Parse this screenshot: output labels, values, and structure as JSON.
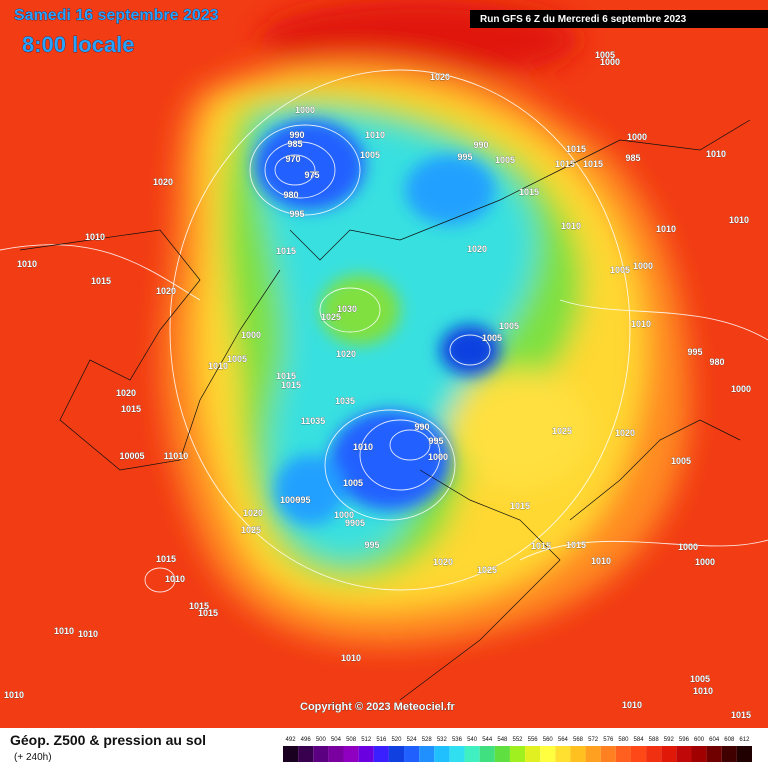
{
  "header": {
    "date": "Samedi 16 septembre 2023",
    "time": "8:00 locale",
    "run": "Run GFS 6 Z du Mercredi 6 septembre 2023"
  },
  "copyright": "Copyright © 2023 Meteociel.fr",
  "legend": {
    "title": "Géop. Z500 & pression au sol",
    "subtitle": "(+ 240h)",
    "scale": [
      {
        "label": "492",
        "color": "#1a0020"
      },
      {
        "label": "496",
        "color": "#3a0050"
      },
      {
        "label": "500",
        "color": "#5a0080"
      },
      {
        "label": "504",
        "color": "#7a00a0"
      },
      {
        "label": "508",
        "color": "#9000c0"
      },
      {
        "label": "512",
        "color": "#6a00e0"
      },
      {
        "label": "516",
        "color": "#3a20ff"
      },
      {
        "label": "520",
        "color": "#1040e0"
      },
      {
        "label": "524",
        "color": "#2060ff"
      },
      {
        "label": "528",
        "color": "#2090ff"
      },
      {
        "label": "532",
        "color": "#20c0ff"
      },
      {
        "label": "536",
        "color": "#30e0f0"
      },
      {
        "label": "540",
        "color": "#40f0c0"
      },
      {
        "label": "544",
        "color": "#40e080"
      },
      {
        "label": "548",
        "color": "#60e040"
      },
      {
        "label": "552",
        "color": "#a0f020"
      },
      {
        "label": "556",
        "color": "#e0f020"
      },
      {
        "label": "560",
        "color": "#ffff40"
      },
      {
        "label": "564",
        "color": "#ffe030"
      },
      {
        "label": "568",
        "color": "#ffc020"
      },
      {
        "label": "572",
        "color": "#ffa020"
      },
      {
        "label": "576",
        "color": "#ff8020"
      },
      {
        "label": "580",
        "color": "#ff6020"
      },
      {
        "label": "584",
        "color": "#ff4818"
      },
      {
        "label": "588",
        "color": "#f03010"
      },
      {
        "label": "592",
        "color": "#e01808"
      },
      {
        "label": "596",
        "color": "#c00808"
      },
      {
        "label": "600",
        "color": "#a00000"
      },
      {
        "label": "604",
        "color": "#700000"
      },
      {
        "label": "608",
        "color": "#400000"
      },
      {
        "label": "612",
        "color": "#200000"
      }
    ]
  },
  "isobar_labels": [
    "1020",
    "1000",
    "990",
    "985",
    "970",
    "975",
    "980",
    "995",
    "1010",
    "1005",
    "990",
    "995",
    "1005",
    "1015",
    "1015",
    "1015",
    "1000",
    "985",
    "1010",
    "1015",
    "1020",
    "1010",
    "1010",
    "1015",
    "1020",
    "1015",
    "1020",
    "1010",
    "1010",
    "1010",
    "1005",
    "1000",
    "1030",
    "1025",
    "1005",
    "1005",
    "1010",
    "1000",
    "1005",
    "1010",
    "1020",
    "1015",
    "1015",
    "995",
    "980",
    "1000",
    "1035",
    "1020",
    "1015",
    "11035",
    "990",
    "995",
    "1025",
    "1020",
    "1010",
    "1000",
    "10005",
    "11010",
    "1005",
    "1005",
    "1000",
    "995",
    "1015",
    "1020",
    "1000",
    "9905",
    "1025",
    "995",
    "1000",
    "1015",
    "1015",
    "1010",
    "1000",
    "1020",
    "1025",
    "1015",
    "1010",
    "1015",
    "1015",
    "1010",
    "1010",
    "1010",
    "1010",
    "1005",
    "1010",
    "1010",
    "1015",
    "1005",
    "1000"
  ]
}
